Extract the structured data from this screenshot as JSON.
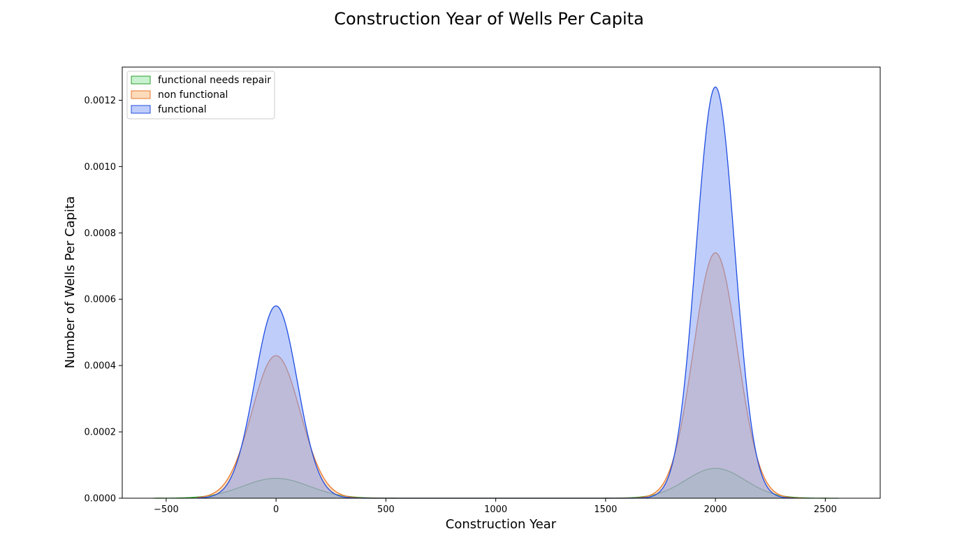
{
  "chart_data": {
    "type": "area",
    "title": "Construction Year of Wells Per Capita",
    "xlabel": "Construction Year",
    "ylabel": "Number of Wells Per Capita",
    "xlim": [
      -700,
      2750
    ],
    "ylim": [
      0,
      0.0013
    ],
    "xticks": [
      -500,
      0,
      500,
      1000,
      1500,
      2000,
      2500
    ],
    "xtick_labels": [
      "−500",
      "0",
      "500",
      "1000",
      "1500",
      "2000",
      "2500"
    ],
    "yticks": [
      0,
      0.0002,
      0.0004,
      0.0006,
      0.0008,
      0.001,
      0.0012
    ],
    "ytick_labels": [
      "0.0000",
      "0.0002",
      "0.0004",
      "0.0006",
      "0.0008",
      "0.0010",
      "0.0012"
    ],
    "grid": false,
    "legend_position": "top-left",
    "series": [
      {
        "name": "functional needs repair",
        "line_color": "#2ca02c",
        "fill_color": "#8fe3a0",
        "x_range": [
          -560,
          2560
        ],
        "peaks": [
          {
            "x": 0,
            "y": 6e-05,
            "sigma": 150
          },
          {
            "x": 2000,
            "y": 9e-05,
            "sigma": 135
          }
        ]
      },
      {
        "name": "non functional",
        "line_color": "#e8772e",
        "fill_color": "#f9b777",
        "x_range": [
          -360,
          2400
        ],
        "peaks": [
          {
            "x": 0,
            "y": 0.00043,
            "sigma": 110
          },
          {
            "x": 2000,
            "y": 0.00074,
            "sigma": 100
          }
        ]
      },
      {
        "name": "functional",
        "line_color": "#1f4de0",
        "fill_color": "#7f9cf5",
        "x_range": [
          -360,
          2370
        ],
        "peaks": [
          {
            "x": 0,
            "y": 0.00058,
            "sigma": 97
          },
          {
            "x": 2000,
            "y": 0.00124,
            "sigma": 88
          }
        ]
      }
    ]
  }
}
